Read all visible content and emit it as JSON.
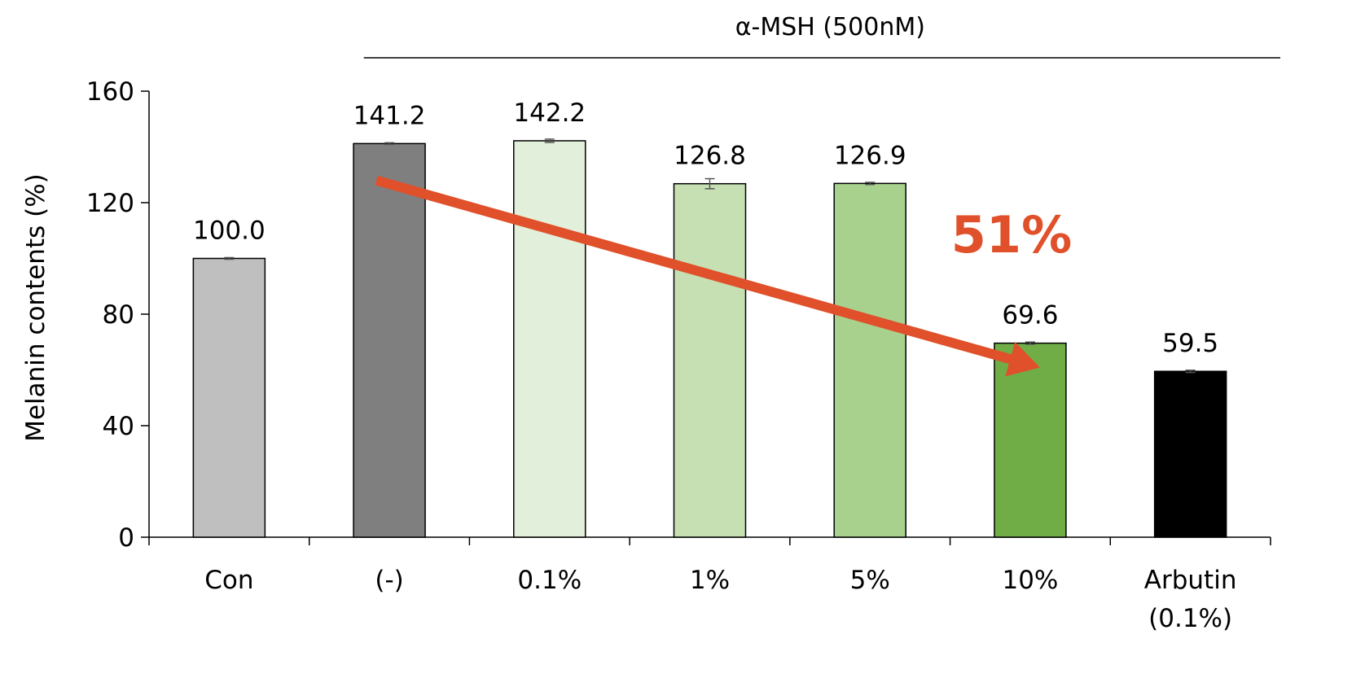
{
  "chart_data": {
    "type": "bar",
    "title": "",
    "xlabel": "",
    "ylabel": "Melanin contents (%)",
    "ylim": [
      0,
      160
    ],
    "yticks": [
      0,
      40,
      80,
      120,
      160
    ],
    "grid": false,
    "categories": [
      {
        "line1": "Con",
        "line2": ""
      },
      {
        "line1": "(-)",
        "line2": ""
      },
      {
        "line1": "0.1%",
        "line2": ""
      },
      {
        "line1": "1%",
        "line2": ""
      },
      {
        "line1": "5%",
        "line2": ""
      },
      {
        "line1": "10%",
        "line2": ""
      },
      {
        "line1": "Arbutin",
        "line2": "(0.1%)"
      }
    ],
    "values": [
      100.0,
      141.2,
      142.2,
      126.8,
      126.9,
      69.6,
      59.5
    ],
    "value_labels": [
      "100.0",
      "141.2",
      "142.2",
      "126.8",
      "126.9",
      "69.6",
      "59.5"
    ],
    "errors": [
      0.3,
      0.3,
      0.6,
      1.8,
      0.4,
      0.4,
      0.4
    ],
    "bar_colors": [
      "#BFBFBF",
      "#7F7F7F",
      "#E2EFDA",
      "#C6E0B4",
      "#A9D18E",
      "#70AD47",
      "#000000"
    ],
    "group_annotation": {
      "label": "α-MSH (500nM)",
      "from_category": 1,
      "to_category": 6
    },
    "callout": {
      "text": "51%",
      "color": "#E0502A",
      "arrow_from": [
        1,
        128
      ],
      "arrow_to": [
        5,
        60
      ]
    }
  }
}
